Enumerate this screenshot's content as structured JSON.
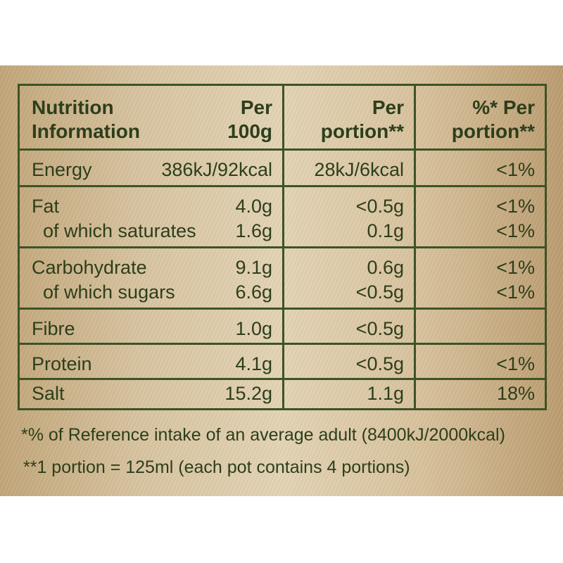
{
  "header": {
    "nutrition_line1": "Nutrition",
    "nutrition_line2": "Information",
    "per100_line1": "Per",
    "per100_line2": "100g",
    "perportion_line1": "Per",
    "perportion_line2": "portion**",
    "pct_line1": "%* Per",
    "pct_line2": "portion**"
  },
  "rows": [
    {
      "label": "Energy",
      "per100": "386kJ/92kcal",
      "portion": "28kJ/6kcal",
      "pct": "<1%"
    },
    {
      "label": "Fat",
      "per100": "4.0g",
      "portion": "<0.5g",
      "pct": "<1%"
    },
    {
      "label": "of which saturates",
      "per100": "1.6g",
      "portion": "0.1g",
      "pct": "<1%"
    },
    {
      "label": "Carbohydrate",
      "per100": "9.1g",
      "portion": "0.6g",
      "pct": "<1%"
    },
    {
      "label": "of which sugars",
      "per100": "6.6g",
      "portion": "<0.5g",
      "pct": "<1%"
    },
    {
      "label": "Fibre",
      "per100": "1.0g",
      "portion": "<0.5g",
      "pct": ""
    },
    {
      "label": "Protein",
      "per100": "4.1g",
      "portion": "<0.5g",
      "pct": "<1%"
    },
    {
      "label": "Salt",
      "per100": "15.2g",
      "portion": "1.1g",
      "pct": "18%"
    }
  ],
  "footnotes": {
    "ref": "*% of Reference intake of an average adult (8400kJ/2000kcal)",
    "portion": "**1 portion = 125ml (each pot contains 4 portions)"
  },
  "colors": {
    "text": "#2d3e1c",
    "border": "#3d5326"
  }
}
